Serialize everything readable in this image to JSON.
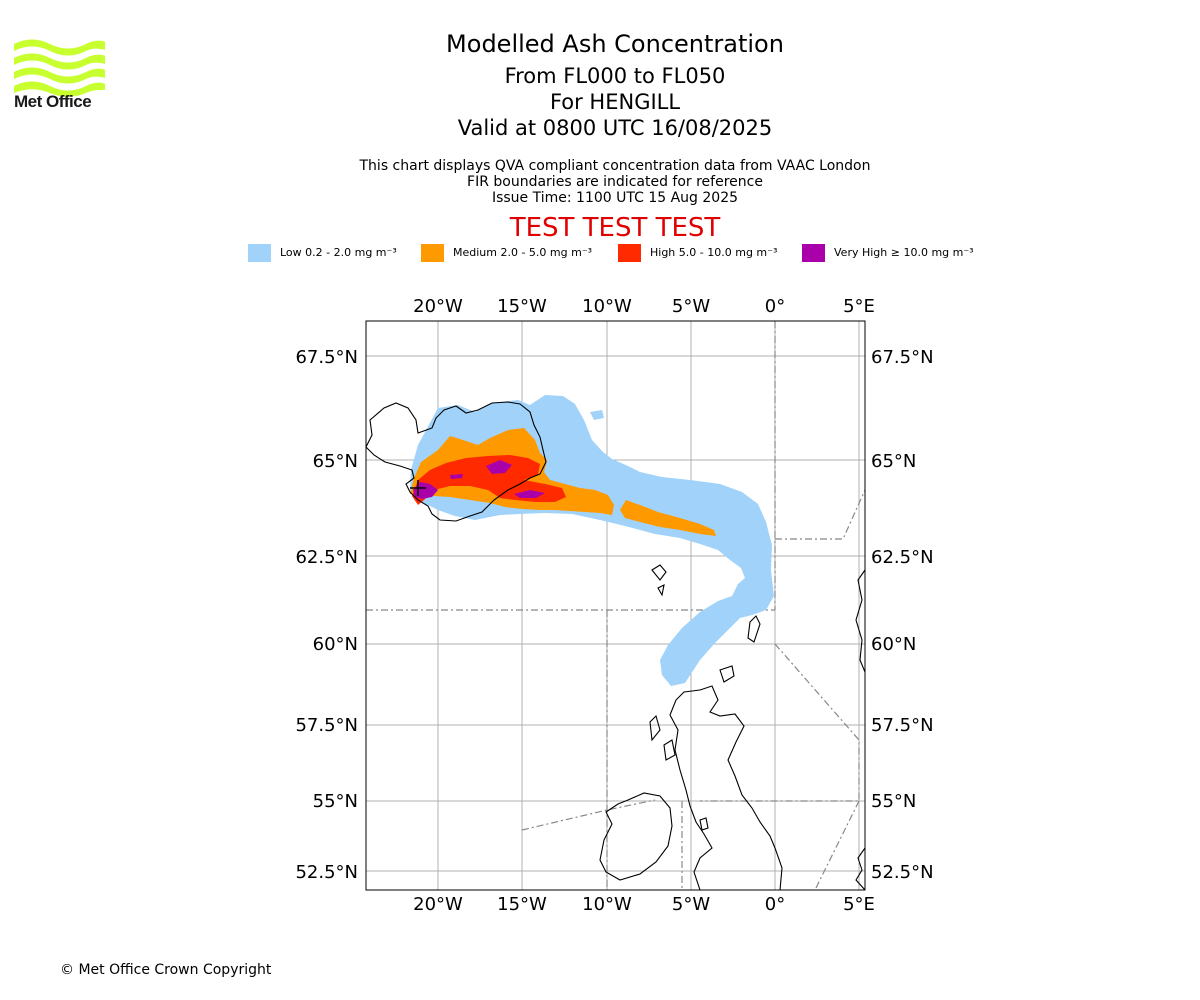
{
  "header": {
    "logo_text": "Met Office",
    "title": "Modelled Ash Concentration",
    "subtitle_levels": "From FL000 to FL050",
    "subtitle_location": "For HENGILL",
    "subtitle_valid": "Valid at 0800 UTC 16/08/2025",
    "info_line1": "This chart displays QVA compliant concentration data from VAAC London",
    "info_line2": "FIR boundaries are indicated for reference",
    "info_line3": "Issue Time: 1100 UTC 15 Aug 2025",
    "test_banner": "TEST TEST TEST"
  },
  "legend": [
    {
      "label": "Low 0.2 - 2.0 mg m⁻³",
      "color": "#a0d2fa"
    },
    {
      "label": "Medium 2.0 - 5.0 mg m⁻³",
      "color": "#ff9900"
    },
    {
      "label": "High 5.0 - 10.0 mg m⁻³",
      "color": "#ff2a00"
    },
    {
      "label": "Very High ≥ 10.0 mg m⁻³",
      "color": "#aa00aa"
    }
  ],
  "map": {
    "lon_ticks": [
      "20°W",
      "15°W",
      "10°W",
      "5°W",
      "0°",
      "5°E"
    ],
    "lat_ticks": [
      "67.5°N",
      "65°N",
      "62.5°N",
      "60°N",
      "57.5°N",
      "55°N",
      "52.5°N"
    ],
    "colors": {
      "low": "#a0d2fa",
      "medium": "#ff9900",
      "high": "#ff2a00",
      "very_high": "#aa00aa",
      "grid": "#b0b0b0",
      "fir": "#888888",
      "coast": "#000000"
    }
  },
  "footer": {
    "copyright": "© Met Office Crown Copyright"
  }
}
